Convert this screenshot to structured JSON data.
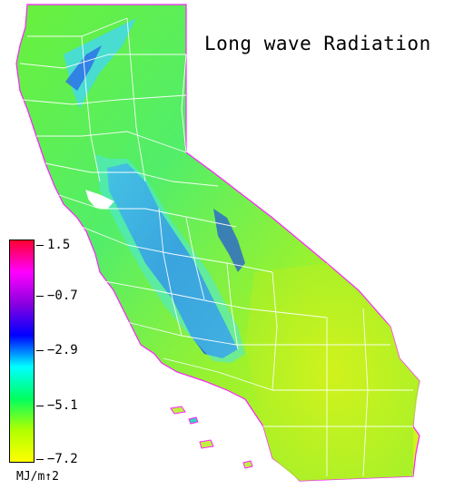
{
  "map": {
    "title": "Long wave Radiation",
    "region": "California",
    "colors": {
      "ocean": "#ffffff",
      "low": "#e8f000",
      "mid_low": "#7cf23a",
      "mid": "#3ff08c",
      "cyan": "#4df0e0",
      "blue": "#1a2ee0",
      "purple": "#8a1ae0",
      "magenta": "#ff10e8",
      "high": "#ff1030",
      "county_lines": "#ffffff"
    }
  },
  "legend": {
    "units": "MJ/m↑2",
    "ticks": [
      "1.5",
      "−0.7",
      "−2.9",
      "−5.1",
      "−7.2"
    ],
    "gradient": [
      "#ff0030",
      "#ff00ff",
      "#8a00e0",
      "#0000ff",
      "#00ffff",
      "#00ff60",
      "#b0ff00",
      "#ffff00"
    ]
  }
}
